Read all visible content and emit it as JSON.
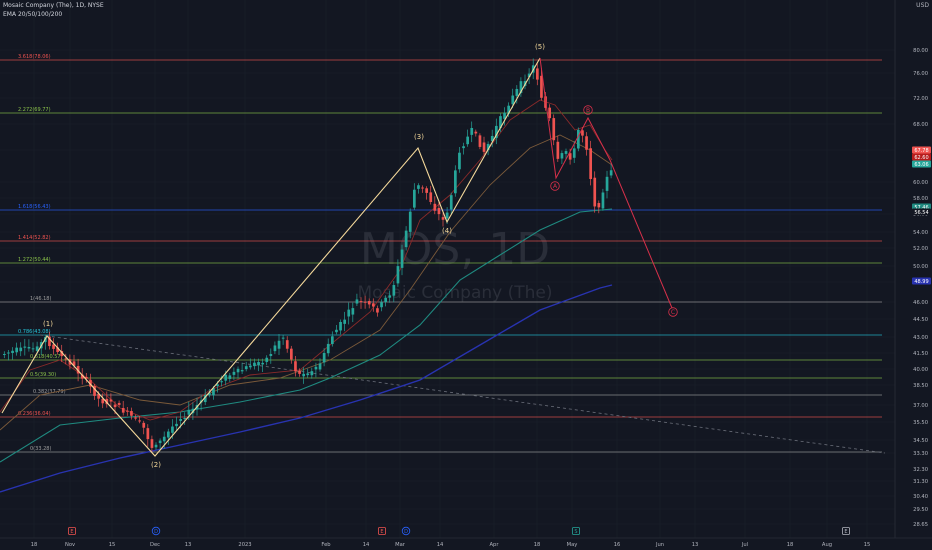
{
  "header": {
    "symbol_line": "Mosaic Company (The), 1D, NYSE",
    "indicator_line": "EMA 20/50/100/200",
    "currency": "USD"
  },
  "watermark": {
    "ticker": "MOS, 1D",
    "name": "Mosaic Company (The)"
  },
  "colors": {
    "background": "#131722",
    "up_candle": "#26a69a",
    "down_candle": "#ef5350",
    "wave_impulse": "#f5d99b",
    "wave_corrective": "#d6304a",
    "ema20": "#8a2a2a",
    "ema50": "#7b5a3a",
    "ema100": "#1f8a80",
    "ema200": "#2833b0",
    "trendline": "#6b6f7a"
  },
  "price_axis": {
    "ticks": [
      "80.00",
      "76.00",
      "72.00",
      "68.00",
      "64.00",
      "60.00",
      "58.00",
      "56.00",
      "54.00",
      "52.00",
      "50.00",
      "48.00",
      "46.00",
      "44.50",
      "43.00",
      "41.50",
      "40.00",
      "38.50",
      "37.00",
      "35.50",
      "34.50",
      "33.30",
      "32.30",
      "31.30",
      "30.40",
      "29.50",
      "28.65",
      "27.80"
    ],
    "badges": [
      {
        "label": "67.78",
        "color": "#ef5350"
      },
      {
        "label": "62.60",
        "color": "#b71c1c"
      },
      {
        "label": "63.06",
        "color": "#26a69a"
      },
      {
        "label": "57.46",
        "color": "#1f8a80"
      },
      {
        "label": "56.54",
        "color": "#131722"
      },
      {
        "label": "48.99",
        "color": "#2833b0"
      }
    ]
  },
  "time_axis": [
    "18",
    "Nov",
    "15",
    "Dec",
    "13",
    "2023",
    "Feb",
    "14",
    "Mar",
    "14",
    "Apr",
    "18",
    "May",
    "16",
    "Jun",
    "13",
    "Jul",
    "18",
    "Aug",
    "15"
  ],
  "fib_levels": [
    {
      "label": "3.618(78.06)",
      "color": "#ef5350",
      "price": 78.06
    },
    {
      "label": "2.272(69.77)",
      "color": "#8bc34a",
      "price": 69.77
    },
    {
      "label": "1.618(56.43)",
      "color": "#2962ff",
      "price": 56.43
    },
    {
      "label": "1.414(52.82)",
      "color": "#ef5350",
      "price": 52.82
    },
    {
      "label": "1.272(50.44)",
      "color": "#8bc34a",
      "price": 50.44
    },
    {
      "label": "1(46.18)",
      "color": "#9e9e9e",
      "price": 46.18
    },
    {
      "label": "0.786(43.08)",
      "color": "#26c6da",
      "price": 43.08
    },
    {
      "label": "0.618(40.57)",
      "color": "#8bc34a",
      "price": 40.57
    },
    {
      "label": "0.5(39.30)",
      "color": "#8bc34a",
      "price": 39.3
    },
    {
      "label": "0.382(37.79)",
      "color": "#9e9e9e",
      "price": 37.79
    },
    {
      "label": "0.236(36.04)",
      "color": "#ef5350",
      "price": 36.04
    },
    {
      "label": "0(33.28)",
      "color": "#9e9e9e",
      "price": 33.28
    }
  ],
  "wave_labels": {
    "impulse": [
      "(1)",
      "(2)",
      "(3)",
      "(4)",
      "(5)"
    ],
    "corrective": [
      "A",
      "B",
      "C"
    ]
  },
  "event_markers": [
    "E",
    "D",
    "E",
    "D",
    "S",
    "E"
  ]
}
